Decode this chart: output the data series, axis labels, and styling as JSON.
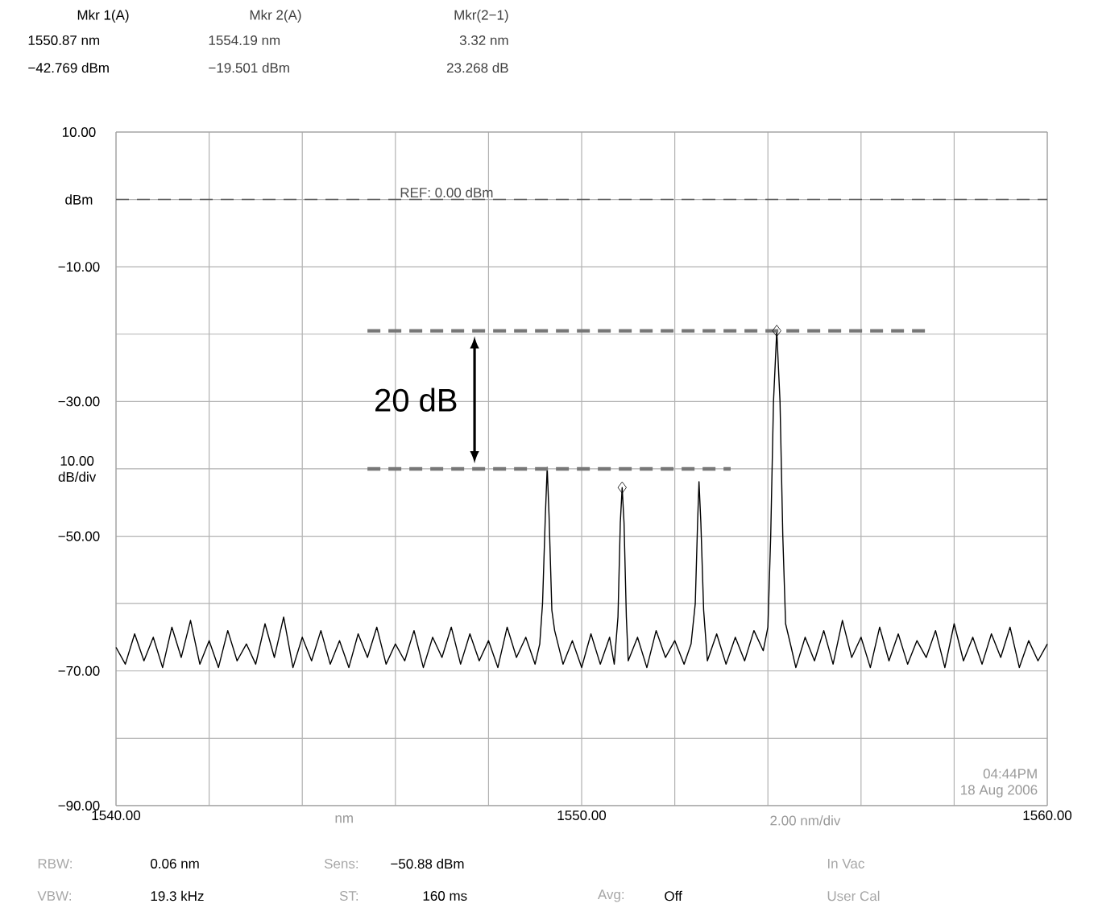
{
  "chart_data": {
    "type": "line",
    "xlabel": "nm",
    "xlim": [
      1540,
      1560
    ],
    "xticks": [
      {
        "value": 1540,
        "label": "1540.00"
      },
      {
        "value": 1542,
        "label": null
      },
      {
        "value": 1544,
        "label": null
      },
      {
        "value": 1546,
        "label": null
      },
      {
        "value": 1548,
        "label": null
      },
      {
        "value": 1550,
        "label": "1550.00"
      },
      {
        "value": 1552,
        "label": null
      },
      {
        "value": 1554,
        "label": null
      },
      {
        "value": 1556,
        "label": null
      },
      {
        "value": 1558,
        "label": null
      },
      {
        "value": 1560,
        "label": "1560.00"
      }
    ],
    "ylim": [
      -90,
      10
    ],
    "ylabel": "10.00 dB/div",
    "yticks": [
      {
        "value": 10,
        "label": "10.00"
      },
      {
        "value": 0,
        "label": "dBm"
      },
      {
        "value": -10,
        "label": "−10.00"
      },
      {
        "value": -20,
        "label": null
      },
      {
        "value": -30,
        "label": "−30.00"
      },
      {
        "value": -40,
        "label": null
      },
      {
        "value": -50,
        "label": "−50.00"
      },
      {
        "value": -60,
        "label": null
      },
      {
        "value": -70,
        "label": "−70.00"
      },
      {
        "value": -80,
        "label": null
      },
      {
        "value": -90,
        "label": "−90.00"
      }
    ],
    "grid": true,
    "ref_lines": [
      {
        "axis": "y",
        "value": 0,
        "label": "REF: 0.00 dBm",
        "color": "#555555",
        "line_style": "dashed"
      }
    ],
    "series": [
      {
        "color": "#000000",
        "marker": "none",
        "x": [
          1540.0,
          1540.2,
          1540.4,
          1540.6,
          1540.8,
          1541.0,
          1541.2,
          1541.4,
          1541.6,
          1541.8,
          1542.0,
          1542.2,
          1542.4,
          1542.6,
          1542.8,
          1543.0,
          1543.2,
          1543.4,
          1543.6,
          1543.8,
          1544.0,
          1544.2,
          1544.4,
          1544.6,
          1544.8,
          1545.0,
          1545.2,
          1545.4,
          1545.6,
          1545.8,
          1546.0,
          1546.2,
          1546.4,
          1546.6,
          1546.8,
          1547.0,
          1547.2,
          1547.4,
          1547.6,
          1547.8,
          1548.0,
          1548.2,
          1548.4,
          1548.6,
          1548.8,
          1549.0,
          1549.1,
          1549.16,
          1549.22,
          1549.26,
          1549.3,
          1549.36,
          1549.42,
          1549.6,
          1549.8,
          1550.0,
          1550.2,
          1550.4,
          1550.6,
          1550.7,
          1550.78,
          1550.83,
          1550.87,
          1550.91,
          1550.96,
          1551.0,
          1551.2,
          1551.4,
          1551.6,
          1551.8,
          1552.0,
          1552.2,
          1552.35,
          1552.44,
          1552.49,
          1552.52,
          1552.56,
          1552.62,
          1552.7,
          1552.9,
          1553.1,
          1553.3,
          1553.5,
          1553.7,
          1553.9,
          1554.0,
          1554.06,
          1554.12,
          1554.19,
          1554.26,
          1554.32,
          1554.38,
          1554.5,
          1554.6,
          1554.8,
          1555.0,
          1555.2,
          1555.4,
          1555.6,
          1555.8,
          1556.0,
          1556.2,
          1556.4,
          1556.6,
          1556.8,
          1557.0,
          1557.2,
          1557.4,
          1557.6,
          1557.8,
          1558.0,
          1558.2,
          1558.4,
          1558.6,
          1558.8,
          1559.0,
          1559.2,
          1559.4,
          1559.6,
          1559.8,
          1560.0
        ],
        "values": [
          -66.5,
          -69.0,
          -64.5,
          -68.5,
          -65.0,
          -69.5,
          -63.5,
          -68.0,
          -62.5,
          -69.0,
          -65.5,
          -69.5,
          -64.0,
          -68.5,
          -66.0,
          -69.0,
          -63.0,
          -68.0,
          -62.0,
          -69.5,
          -65.0,
          -68.5,
          -64.0,
          -69.0,
          -65.5,
          -69.5,
          -64.5,
          -68.0,
          -63.5,
          -69.0,
          -66.0,
          -68.5,
          -64.0,
          -69.5,
          -65.0,
          -68.0,
          -63.5,
          -69.0,
          -64.5,
          -68.5,
          -65.5,
          -69.5,
          -63.5,
          -68.0,
          -65.0,
          -69.0,
          -66.0,
          -60,
          -47,
          -39.8,
          -47,
          -61,
          -64,
          -69.0,
          -65.5,
          -69.5,
          -64.5,
          -69.0,
          -65.0,
          -69.0,
          -62,
          -48,
          -42.769,
          -48,
          -62,
          -68.5,
          -65.0,
          -69.5,
          -64.0,
          -68.0,
          -65.5,
          -69.0,
          -66.0,
          -60,
          -48,
          -41.9,
          -48,
          -61,
          -68.5,
          -64.5,
          -69.0,
          -65.0,
          -68.5,
          -64.0,
          -67.0,
          -63.5,
          -50,
          -30,
          -19.501,
          -30,
          -50,
          -63,
          -66.5,
          -69.5,
          -65.0,
          -68.5,
          -64.0,
          -69.0,
          -62.5,
          -68.0,
          -65.0,
          -69.5,
          -63.5,
          -68.5,
          -64.5,
          -69.0,
          -65.5,
          -68.0,
          -64.0,
          -69.5,
          -63.0,
          -68.5,
          -65.0,
          -69.0,
          -64.5,
          -68.0,
          -63.5,
          -69.5,
          -65.5,
          -68.5,
          -66.0
        ]
      },
      {
        "type": "scatter",
        "color": "#000000",
        "marker": "diamond",
        "x": [
          1550.87,
          1554.19
        ],
        "values": [
          -42.769,
          -19.501
        ]
      },
      {
        "color": "#777777",
        "line_style": "dashed",
        "marker": "none",
        "x": [
          1545.4,
          1557.5
        ],
        "values": [
          -19.5,
          -19.5
        ]
      },
      {
        "color": "#777777",
        "line_style": "dashed",
        "marker": "none",
        "x": [
          1545.4,
          1553.2
        ],
        "values": [
          -40,
          -40
        ]
      }
    ],
    "annotations": [
      "Mkr 1(A)",
      "1550.87 nm",
      "−42.769 dBm",
      "Mkr 2(A)",
      "1554.19 nm",
      "−19.501 dBm",
      "Mkr(2−1)",
      "3.32 nm",
      "23.268 dB",
      "RBW:",
      "0.06 nm",
      "Sens:",
      "−50.88 dBm",
      "In Vac",
      "VBW:",
      "19.3 kHz",
      "ST:",
      "160 ms",
      "Avg:",
      "Off",
      "User Cal",
      "2.00 nm/div",
      "04:44PM",
      "18 Aug 2006",
      "20 dB"
    ]
  }
}
